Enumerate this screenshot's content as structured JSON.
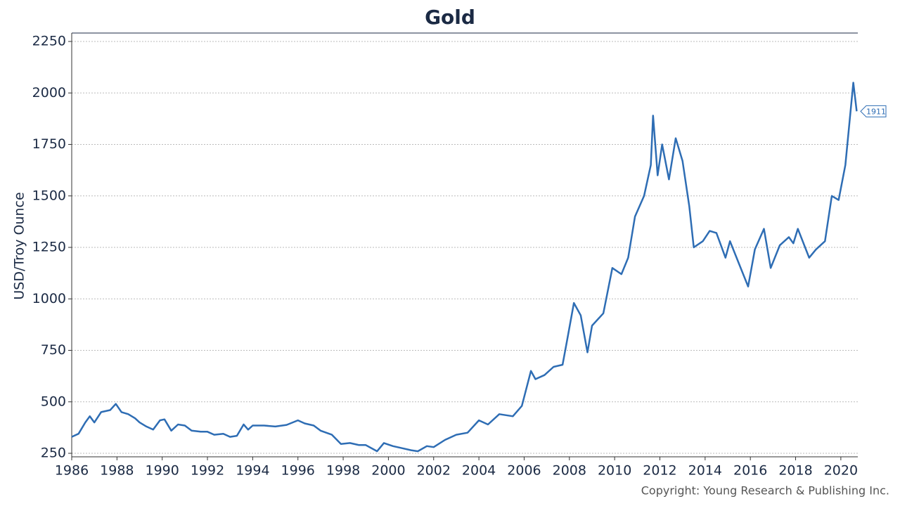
{
  "chart_data": {
    "type": "line",
    "title": "Gold",
    "ylabel": "USD/Troy Ounce",
    "copyright": "Copyright: Young Research & Publishing Inc.",
    "color": "#2e6db4",
    "grid": true,
    "xlim": [
      1986,
      2020.75
    ],
    "ylim": [
      233,
      2291
    ],
    "xticks": [
      1986,
      1988,
      1990,
      1992,
      1994,
      1996,
      1998,
      2000,
      2002,
      2004,
      2006,
      2008,
      2010,
      2012,
      2014,
      2016,
      2018,
      2020
    ],
    "yticks": [
      250,
      500,
      750,
      1000,
      1250,
      1500,
      1750,
      2000,
      2250
    ],
    "x": [
      1986.0,
      1986.3,
      1986.6,
      1986.8,
      1987.0,
      1987.3,
      1987.7,
      1987.95,
      1988.2,
      1988.5,
      1988.8,
      1989.0,
      1989.3,
      1989.6,
      1989.9,
      1990.1,
      1990.4,
      1990.7,
      1991.0,
      1991.3,
      1991.7,
      1992.0,
      1992.3,
      1992.7,
      1993.0,
      1993.3,
      1993.6,
      1993.8,
      1994.0,
      1994.5,
      1995.0,
      1995.5,
      1996.0,
      1996.3,
      1996.7,
      1997.0,
      1997.5,
      1997.9,
      1998.3,
      1998.7,
      1999.0,
      1999.5,
      1999.8,
      2000.2,
      2000.6,
      2001.0,
      2001.3,
      2001.7,
      2002.0,
      2002.5,
      2003.0,
      2003.5,
      2004.0,
      2004.4,
      2004.9,
      2005.5,
      2005.9,
      2006.3,
      2006.5,
      2006.9,
      2007.3,
      2007.7,
      2007.9,
      2008.2,
      2008.5,
      2008.8,
      2009.0,
      2009.5,
      2009.9,
      2010.3,
      2010.6,
      2010.9,
      2011.3,
      2011.6,
      2011.7,
      2011.9,
      2012.1,
      2012.4,
      2012.7,
      2013.0,
      2013.3,
      2013.5,
      2013.9,
      2014.2,
      2014.5,
      2014.9,
      2015.1,
      2015.5,
      2015.9,
      2016.2,
      2016.6,
      2016.9,
      2017.3,
      2017.7,
      2017.9,
      2018.1,
      2018.6,
      2018.9,
      2019.3,
      2019.6,
      2019.9,
      2020.2,
      2020.55,
      2020.7
    ],
    "values": [
      330,
      345,
      400,
      430,
      400,
      450,
      460,
      490,
      450,
      440,
      420,
      400,
      380,
      365,
      410,
      415,
      360,
      390,
      385,
      360,
      355,
      355,
      340,
      345,
      330,
      335,
      390,
      365,
      385,
      385,
      380,
      388,
      410,
      395,
      385,
      360,
      340,
      295,
      300,
      290,
      290,
      260,
      300,
      285,
      275,
      265,
      260,
      285,
      280,
      315,
      340,
      350,
      410,
      390,
      440,
      430,
      480,
      650,
      610,
      630,
      670,
      680,
      800,
      980,
      920,
      740,
      870,
      930,
      1150,
      1120,
      1200,
      1400,
      1500,
      1650,
      1890,
      1600,
      1750,
      1580,
      1780,
      1670,
      1450,
      1250,
      1280,
      1330,
      1320,
      1200,
      1280,
      1170,
      1060,
      1240,
      1340,
      1150,
      1260,
      1300,
      1270,
      1340,
      1200,
      1240,
      1280,
      1500,
      1480,
      1650,
      2050,
      1911
    ]
  }
}
